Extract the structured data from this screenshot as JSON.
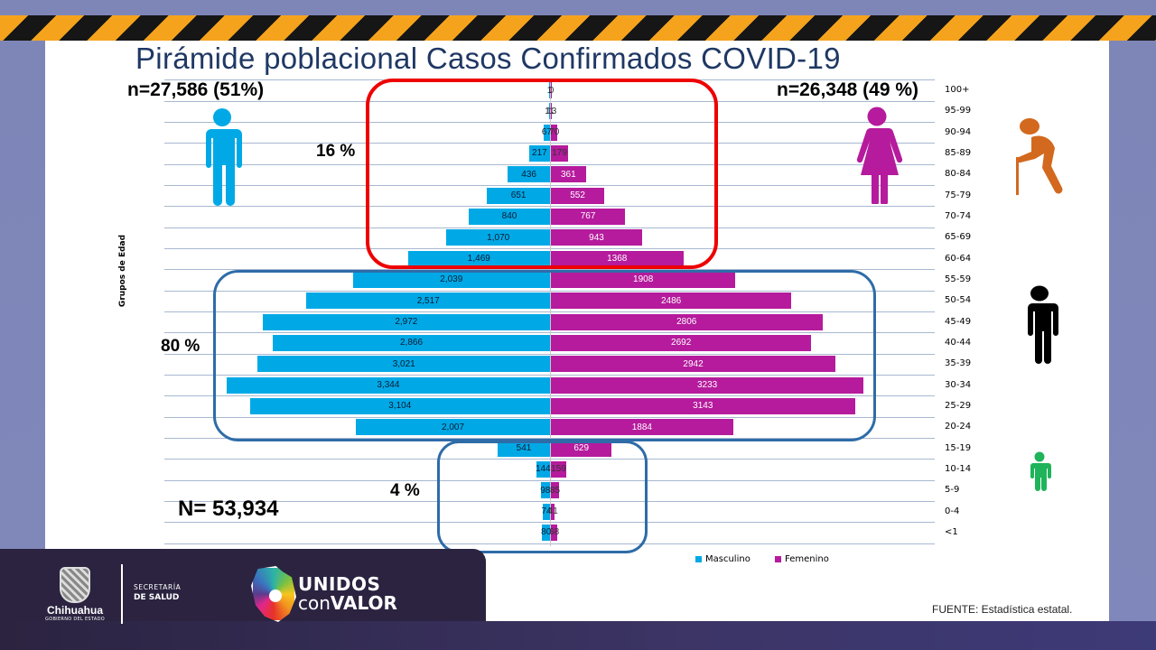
{
  "slide": {
    "title": "Pirámide poblacional  Casos Confirmados COVID-19",
    "n_male": "n=27,586 (51%)",
    "n_female": "n=26,348 (49 %)",
    "n_total": "N= 53,934",
    "pct_elderly": "16 %",
    "pct_adult": "80 %",
    "pct_young": "4 %",
    "y_axis_label": "Grupos de Edad",
    "source": "FUENTE:  Estadística estatal.",
    "legend": {
      "male": "Masculino",
      "female": "Femenino"
    },
    "colors": {
      "male": "#00a9e6",
      "female": "#b51b9c",
      "elderly_box": "#ee0000",
      "adult_box": "#2e6ca8",
      "elderly_icon": "#d2691e",
      "adult_icon": "#000000",
      "child_icon": "#1fb35a"
    },
    "icons": {
      "male": "man-icon",
      "female": "woman-icon",
      "elderly": "elderly-person-icon",
      "adult": "adult-person-icon",
      "child": "child-icon"
    }
  },
  "footer": {
    "state_name": "Chihuahua",
    "state_sub": "GOBIERNO DEL ESTADO",
    "dept_line1": "SECRETARÍA",
    "dept_line2": "DE SALUD",
    "campaign_line1": "UNIDOS",
    "campaign_line2a": "con",
    "campaign_line2b": "VALOR"
  },
  "chart_data": {
    "type": "bar",
    "orientation": "horizontal-pyramid",
    "title": "Pirámide poblacional  Casos Confirmados COVID-19",
    "ylabel": "Grupos de Edad",
    "xlabel": "",
    "legend_position": "bottom",
    "categories": [
      "100+",
      "95-99",
      "90-94",
      "85-89",
      "80-84",
      "75-79",
      "70-74",
      "65-69",
      "60-64",
      "55-59",
      "50-54",
      "45-49",
      "40-44",
      "35-39",
      "30-34",
      "25-29",
      "20-24",
      "15-19",
      "10-14",
      "5-9",
      "0-4",
      "<1"
    ],
    "series": [
      {
        "name": "Masculino",
        "values": [
          1,
          11,
          67,
          217,
          436,
          651,
          840,
          1070,
          1469,
          2039,
          2517,
          2972,
          2866,
          3021,
          3344,
          3104,
          2007,
          541,
          144,
          98,
          74,
          80
        ],
        "labels": [
          "1",
          "11",
          "67",
          "217",
          "436",
          "651",
          "840",
          "1,070",
          "1,469",
          "2,039",
          "2,517",
          "2,972",
          "2,866",
          "3,021",
          "3,344",
          "3,104",
          "2,007",
          "541",
          "144",
          "98",
          "74",
          "80"
        ]
      },
      {
        "name": "Femenino",
        "values": [
          0,
          13,
          70,
          179,
          361,
          552,
          767,
          943,
          1368,
          1908,
          2486,
          2806,
          2692,
          2942,
          3233,
          3143,
          1884,
          629,
          159,
          85,
          41,
          68
        ],
        "labels": [
          "0",
          "13",
          "70",
          "179",
          "361",
          "552",
          "767",
          "943",
          "1368",
          "1908",
          "2486",
          "2806",
          "2692",
          "2942",
          "3233",
          "3143",
          "1884",
          "629",
          "159",
          "85",
          "41",
          "68"
        ]
      }
    ],
    "annotations": [
      "n=27,586 (51%)",
      "n=26,348 (49 %)",
      "N= 53,934",
      "16 %",
      "80 %",
      "4 %"
    ],
    "grid": true
  }
}
